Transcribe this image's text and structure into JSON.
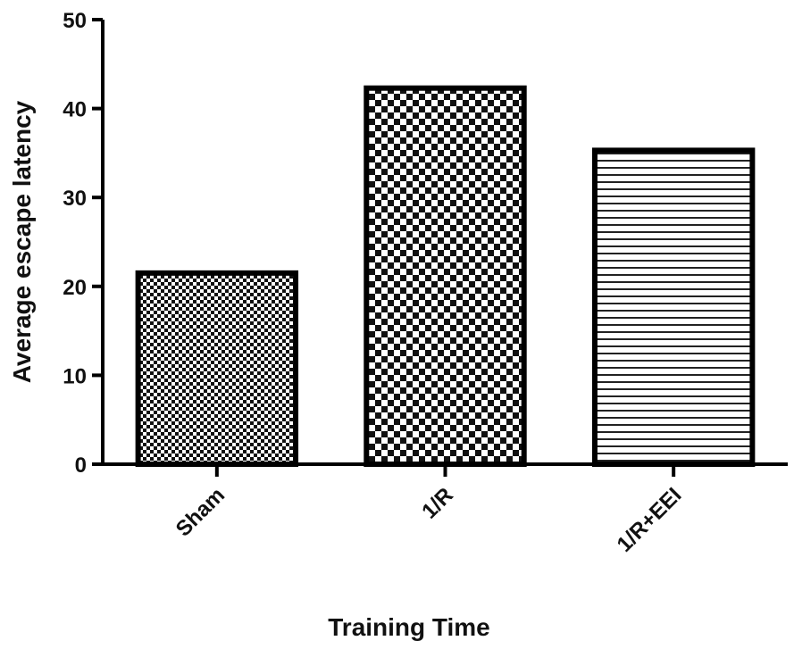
{
  "chart_data": {
    "type": "bar",
    "categories": [
      "Sham",
      "1/R",
      "1/R+EEI"
    ],
    "values": [
      21.5,
      42.3,
      35.3
    ],
    "patterns": [
      "fine-checker",
      "coarse-checker",
      "horizontal-lines"
    ],
    "xlabel": "Training Time",
    "ylabel": "Average escape latency",
    "ylim": [
      0,
      50
    ],
    "yticks": [
      0,
      10,
      20,
      30,
      40,
      50
    ],
    "grid": false
  }
}
